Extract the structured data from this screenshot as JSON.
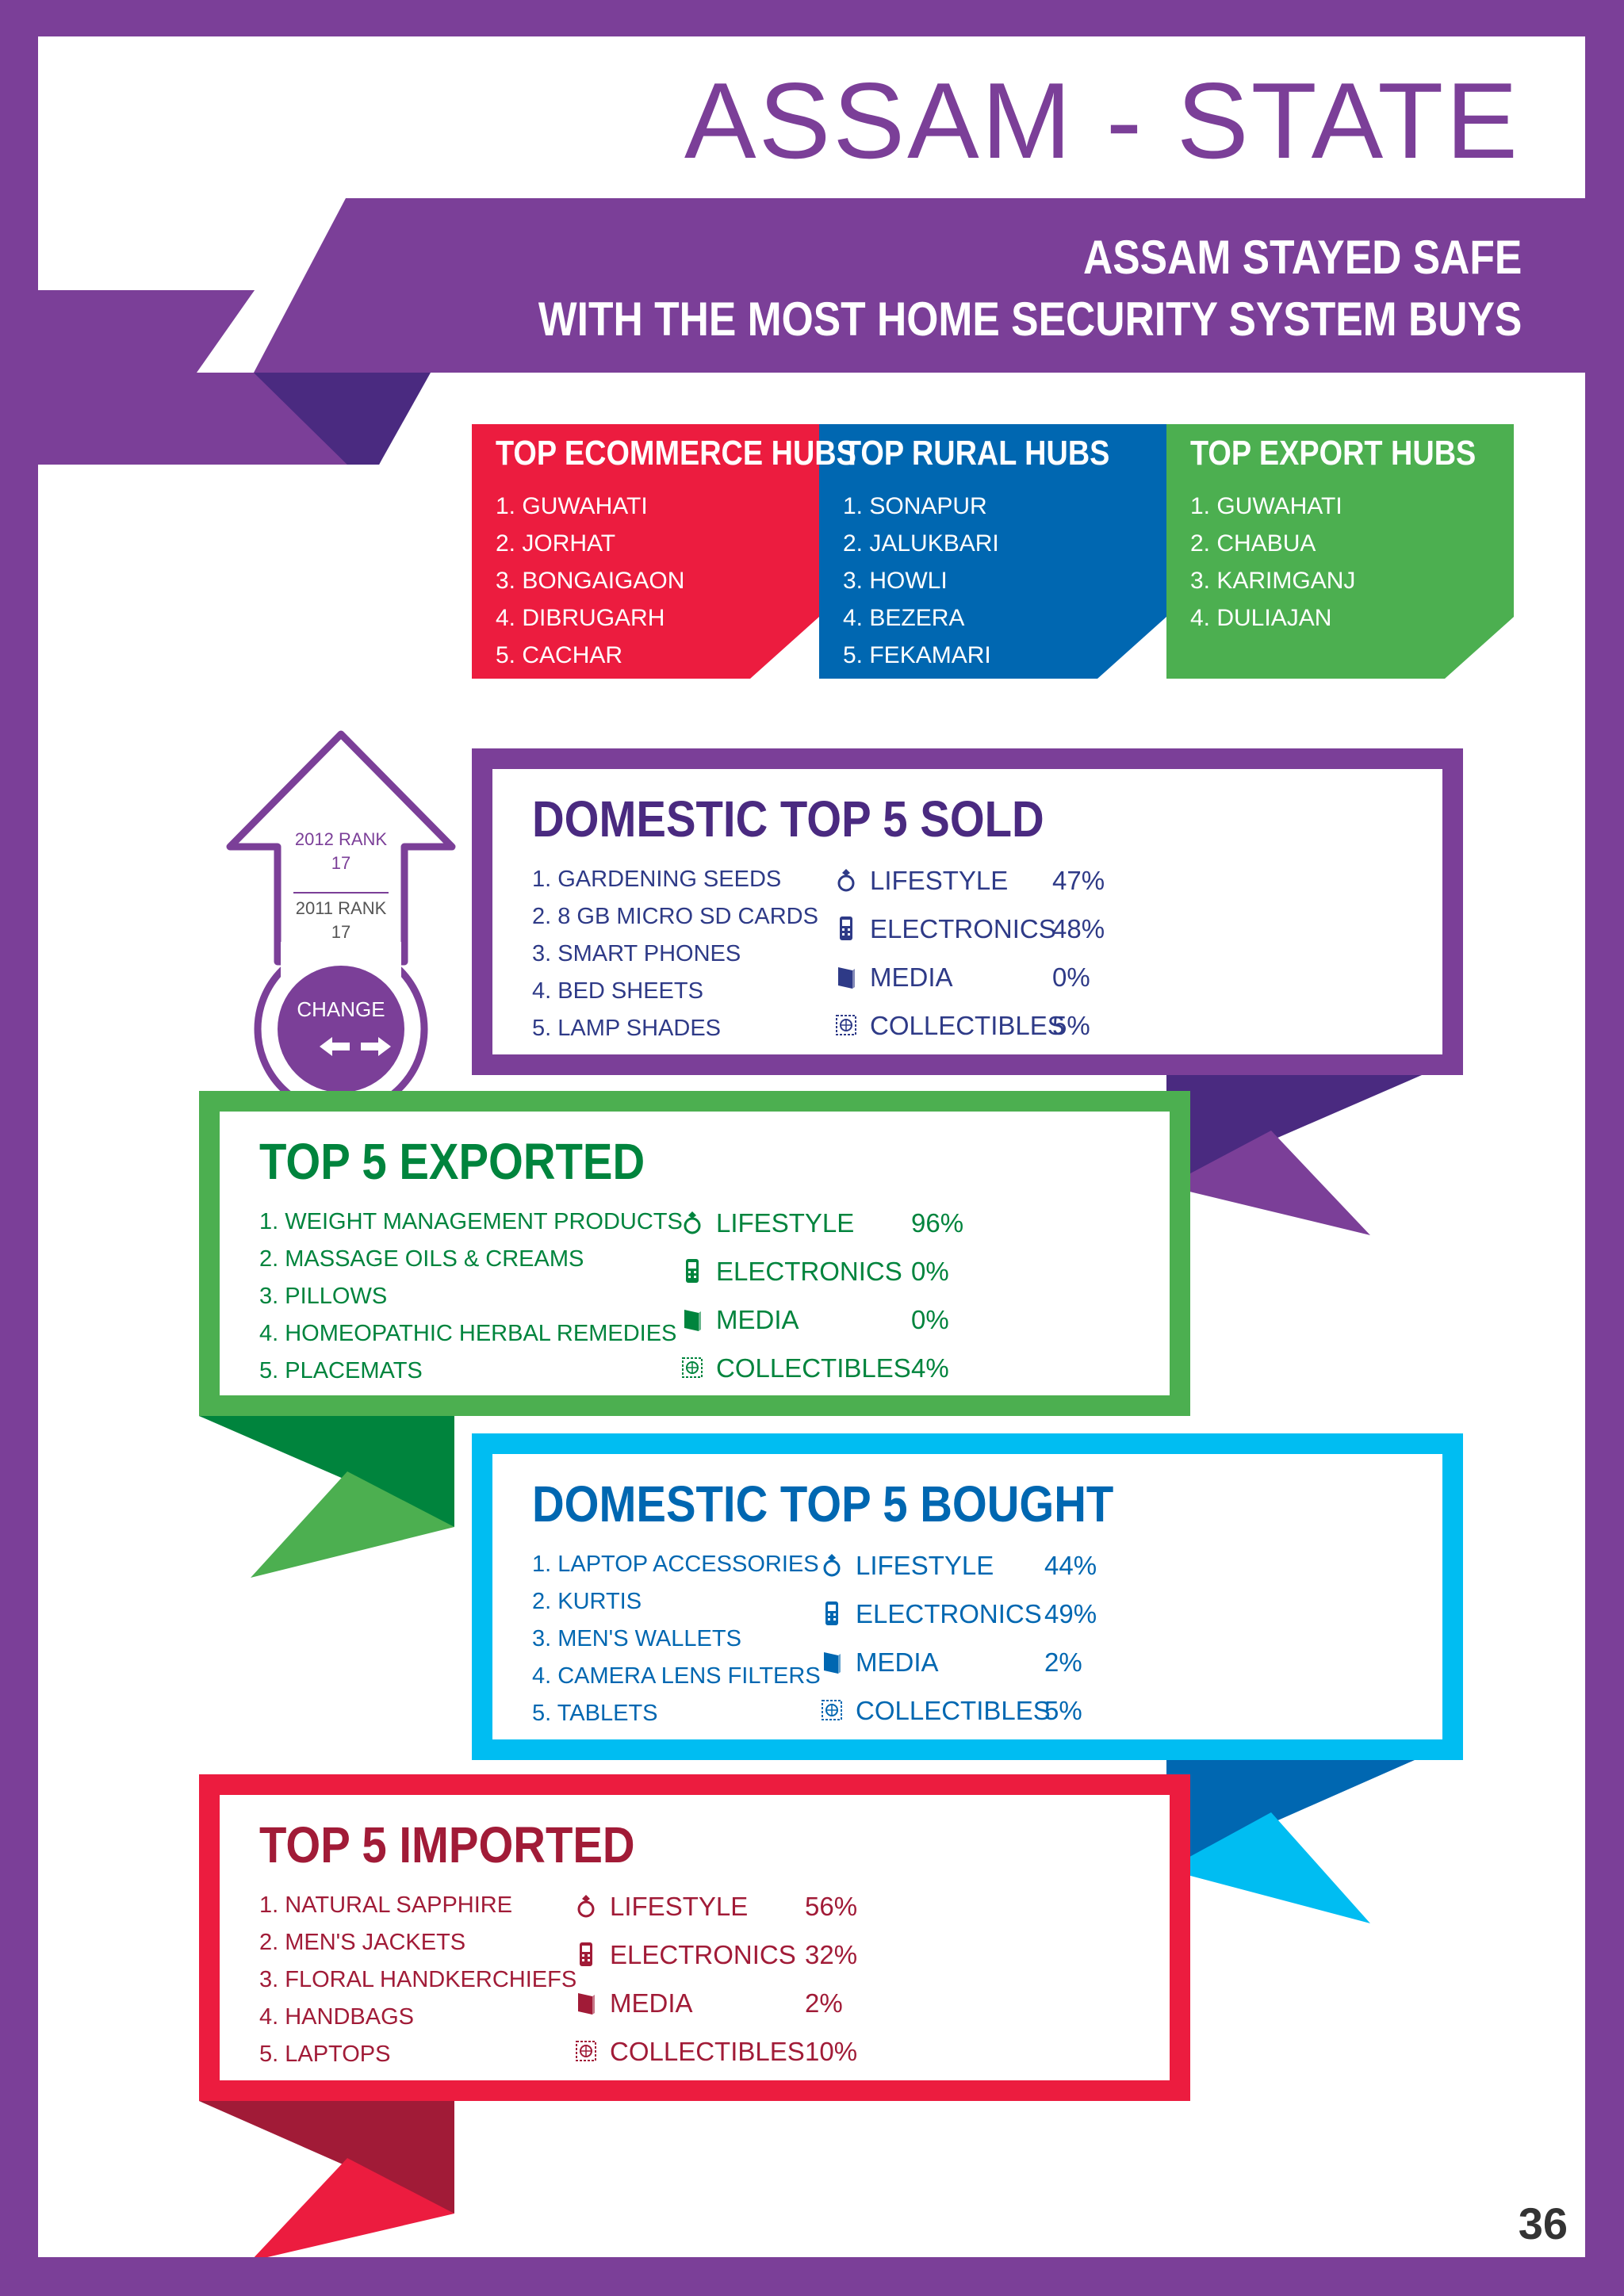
{
  "colors": {
    "purple": "#7b3f98",
    "dark_purple": "#4a2a80",
    "navy_text": "#2e3a87",
    "red": "#ec1c3f",
    "blue": "#0067b1",
    "green": "#4caf50",
    "dark_green": "#00843d",
    "cyan": "#00bdf2",
    "dark_red": "#a11b37"
  },
  "header": {
    "title": "ASSAM - STATE",
    "subtitle_line1": "ASSAM STAYED SAFE",
    "subtitle_line2": "WITH THE MOST HOME SECURITY SYSTEM BUYS"
  },
  "hubs": {
    "ecommerce": {
      "title": "TOP ECOMMERCE HUBS",
      "items": [
        "1. GUWAHATI",
        "2. JORHAT",
        "3. BONGAIGAON",
        "4. DIBRUGARH",
        "5. CACHAR"
      ]
    },
    "rural": {
      "title": "TOP RURAL HUBS",
      "items": [
        "1. SONAPUR",
        "2. JALUKBARI",
        "3. HOWLI",
        "4. BEZERA",
        "5. FEKAMARI"
      ]
    },
    "export": {
      "title": "TOP EXPORT HUBS",
      "items": [
        "1. GUWAHATI",
        "2. CHABUA",
        "3. KARIMGANJ",
        "4. DULIAJAN"
      ]
    }
  },
  "rank": {
    "rank_2012_label": "2012 RANK",
    "rank_2012_value": "17",
    "rank_2011_label": "2011 RANK",
    "rank_2011_value": "17",
    "change_label": "CHANGE",
    "change_icon": "left-right-arrows-icon"
  },
  "domestic_sold": {
    "title": "DOMESTIC TOP 5 SOLD",
    "items": [
      "1. GARDENING SEEDS",
      "2. 8 GB MICRO SD CARDS",
      "3. SMART PHONES",
      "4. BED SHEETS",
      "5. LAMP SHADES"
    ],
    "categories": [
      {
        "label": "LIFESTYLE",
        "value": "47%",
        "icon": "ring-icon"
      },
      {
        "label": "ELECTRONICS",
        "value": "48%",
        "icon": "phone-icon"
      },
      {
        "label": "MEDIA",
        "value": "0%",
        "icon": "book-icon"
      },
      {
        "label": "COLLECTIBLES",
        "value": "5%",
        "icon": "stamp-icon"
      }
    ]
  },
  "exported": {
    "title": "TOP 5 EXPORTED",
    "items": [
      "1. WEIGHT MANAGEMENT PRODUCTS",
      "2. MASSAGE OILS & CREAMS",
      "3. PILLOWS",
      "4. HOMEOPATHIC HERBAL REMEDIES",
      "5. PLACEMATS"
    ],
    "categories": [
      {
        "label": "LIFESTYLE",
        "value": "96%",
        "icon": "ring-icon"
      },
      {
        "label": "ELECTRONICS",
        "value": "0%",
        "icon": "phone-icon"
      },
      {
        "label": "MEDIA",
        "value": "0%",
        "icon": "book-icon"
      },
      {
        "label": "COLLECTIBLES",
        "value": "4%",
        "icon": "stamp-icon"
      }
    ]
  },
  "domestic_bought": {
    "title": "DOMESTIC TOP 5 BOUGHT",
    "items": [
      "1. LAPTOP ACCESSORIES",
      "2. KURTIS",
      "3. MEN'S WALLETS",
      "4. CAMERA LENS FILTERS",
      "5. TABLETS"
    ],
    "categories": [
      {
        "label": "LIFESTYLE",
        "value": "44%",
        "icon": "ring-icon"
      },
      {
        "label": "ELECTRONICS",
        "value": "49%",
        "icon": "phone-icon"
      },
      {
        "label": "MEDIA",
        "value": "2%",
        "icon": "book-icon"
      },
      {
        "label": "COLLECTIBLES",
        "value": "5%",
        "icon": "stamp-icon"
      }
    ]
  },
  "imported": {
    "title": "TOP 5 IMPORTED",
    "items": [
      "1. NATURAL SAPPHIRE",
      "2. MEN'S JACKETS",
      "3. FLORAL HANDKERCHIEFS",
      "4. HANDBAGS",
      "5. LAPTOPS"
    ],
    "categories": [
      {
        "label": "LIFESTYLE",
        "value": "56%",
        "icon": "ring-icon"
      },
      {
        "label": "ELECTRONICS",
        "value": "32%",
        "icon": "phone-icon"
      },
      {
        "label": "MEDIA",
        "value": "2%",
        "icon": "book-icon"
      },
      {
        "label": "COLLECTIBLES",
        "value": "10%",
        "icon": "stamp-icon"
      }
    ]
  },
  "page_number": "36"
}
